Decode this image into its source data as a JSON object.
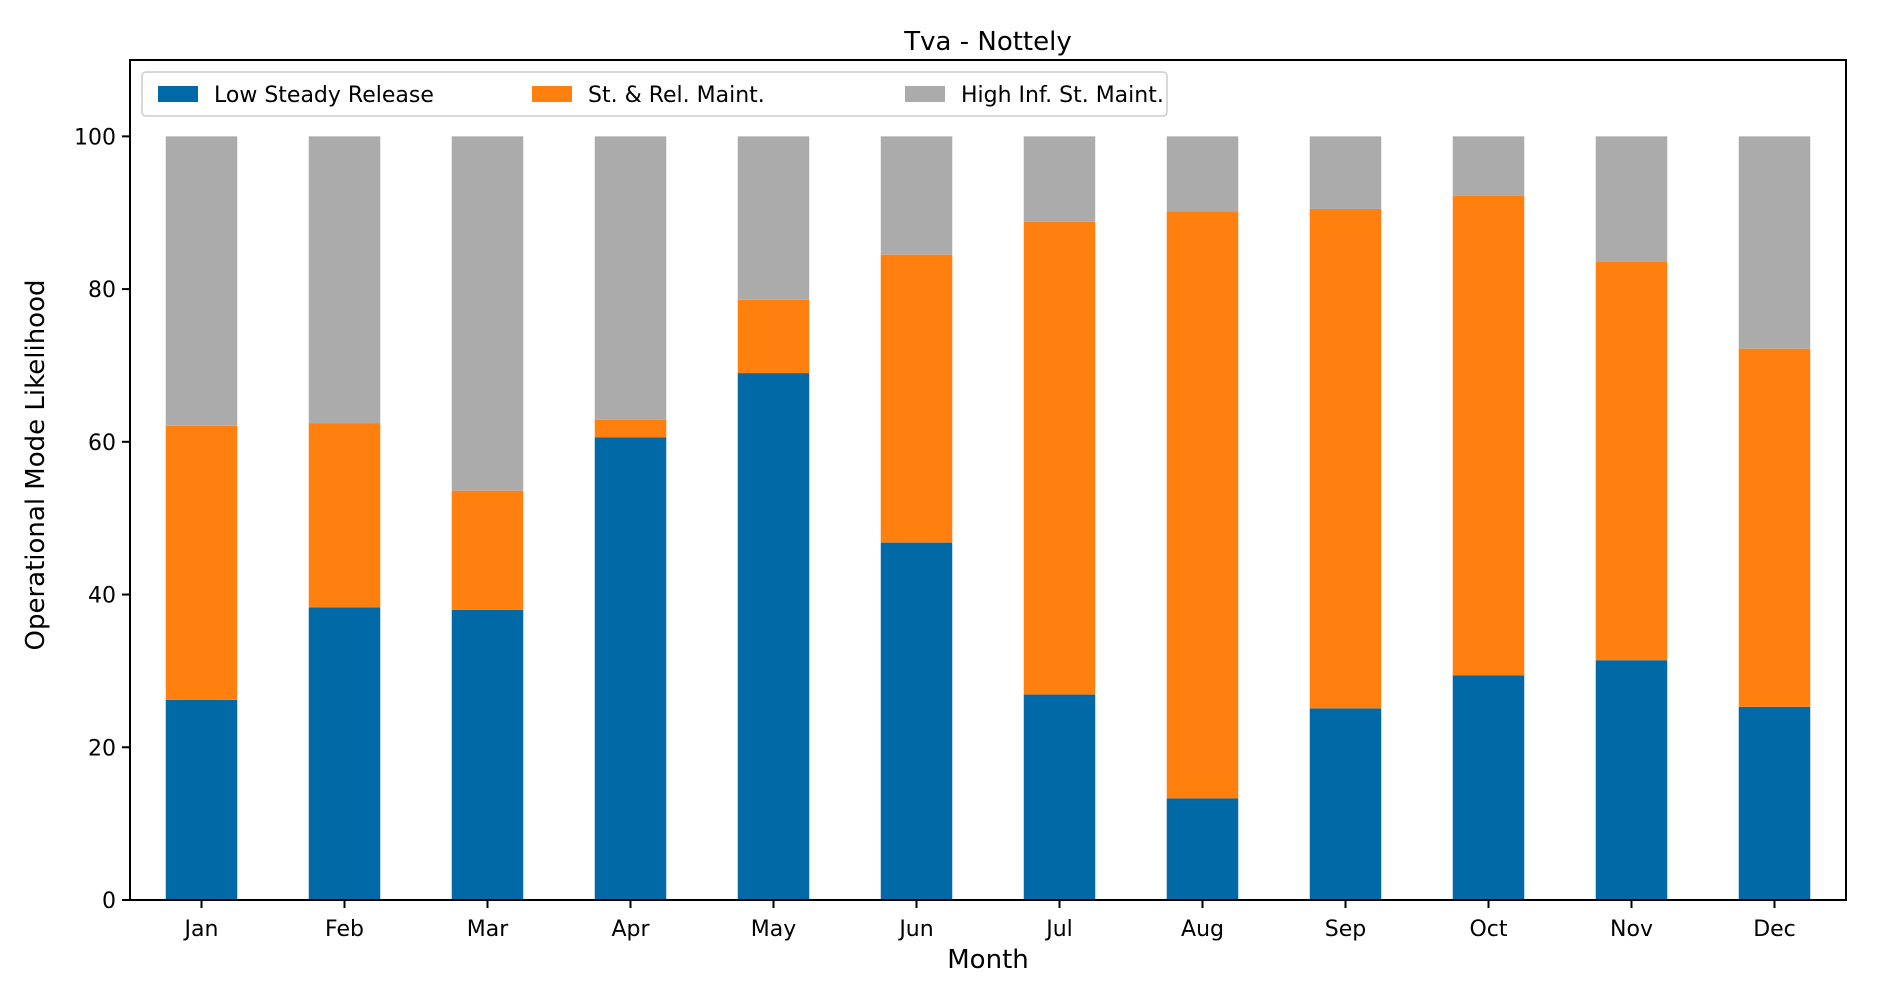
{
  "chart_data": {
    "type": "bar",
    "stacked": true,
    "title": "Tva - Nottely",
    "xlabel": "Month",
    "ylabel": "Operational Mode Likelihood",
    "ylim": [
      0,
      110
    ],
    "yticks": [
      0,
      20,
      40,
      60,
      80,
      100
    ],
    "grid": false,
    "legend_position": "top-left",
    "categories": [
      "Jan",
      "Feb",
      "Mar",
      "Apr",
      "May",
      "Jun",
      "Jul",
      "Aug",
      "Sep",
      "Oct",
      "Nov",
      "Dec"
    ],
    "series": [
      {
        "name": "Low Steady Release",
        "color": "#0169a6",
        "values": [
          26.2,
          38.3,
          38.0,
          60.6,
          69.0,
          46.8,
          26.9,
          13.3,
          25.1,
          29.4,
          31.4,
          25.3
        ]
      },
      {
        "name": "St. & Rel. Maint.",
        "color": "#ff800e",
        "values": [
          35.9,
          24.1,
          15.6,
          2.3,
          9.6,
          37.7,
          61.9,
          76.9,
          65.4,
          62.8,
          52.2,
          46.9
        ]
      },
      {
        "name": "High Inf. St. Maint.",
        "color": "#ababab",
        "values": [
          37.9,
          37.6,
          46.4,
          37.1,
          21.4,
          15.5,
          11.2,
          9.8,
          9.5,
          7.8,
          16.4,
          27.8
        ]
      }
    ]
  }
}
